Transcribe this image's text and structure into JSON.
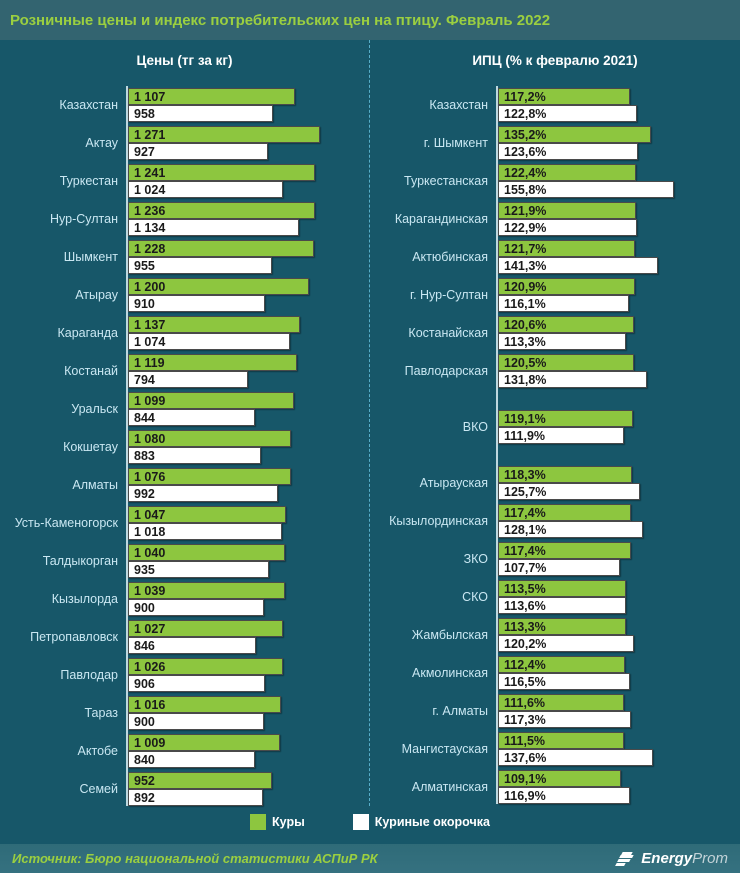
{
  "title": "Розничные цены и индекс потребительских цен на птицу. Февраль 2022",
  "colors": {
    "bg": "#175769",
    "band": "#336470",
    "footer_band": "#357180",
    "accent_green": "#8dc63f",
    "title_green": "#9bcf40",
    "label_blue": "#c9e7f2",
    "divider": "#57aec9",
    "axis": "#dceef5",
    "bar_white": "#ffffff",
    "text_dark": "#1a1a1a"
  },
  "left_panel": {
    "header": "Цены (тг за кг)",
    "rows": [
      {
        "label": "Казахстан",
        "bars": [
          "1 107",
          "958"
        ]
      },
      {
        "label": "Актау",
        "bars": [
          "1 271",
          "927"
        ]
      },
      {
        "label": "Туркестан",
        "bars": [
          "1 241",
          "1 024"
        ]
      },
      {
        "label": "Нур-Султан",
        "bars": [
          "1 236",
          "1 134"
        ]
      },
      {
        "label": "Шымкент",
        "bars": [
          "1 228",
          "955"
        ]
      },
      {
        "label": "Атырау",
        "bars": [
          "1 200",
          "910"
        ]
      },
      {
        "label": "Караганда",
        "bars": [
          "1 137",
          "1 074"
        ]
      },
      {
        "label": "Костанай",
        "bars": [
          "1 119",
          "794"
        ]
      },
      {
        "label": "Уральск",
        "bars": [
          "1 099",
          "844"
        ]
      },
      {
        "label": "Кокшетау",
        "bars": [
          "1 080",
          "883"
        ]
      },
      {
        "label": "Алматы",
        "bars": [
          "1 076",
          "992"
        ]
      },
      {
        "label": "Усть-Каменогорск",
        "bars": [
          "1 047",
          "1 018"
        ]
      },
      {
        "label": "Талдыкорган",
        "bars": [
          "1 040",
          "935"
        ]
      },
      {
        "label": "Кызылорда",
        "bars": [
          "1 039",
          "900"
        ]
      },
      {
        "label": "Петропавловск",
        "bars": [
          "1 027",
          "846"
        ]
      },
      {
        "label": "Павлодар",
        "bars": [
          "1 026",
          "906"
        ]
      },
      {
        "label": "Тараз",
        "bars": [
          "1 016",
          "900"
        ]
      },
      {
        "label": "Актобе",
        "bars": [
          "1 009",
          "840"
        ]
      },
      {
        "label": "Семей",
        "bars": [
          "952",
          "892"
        ]
      }
    ]
  },
  "right_panel": {
    "header": "ИПЦ (% к февралю 2021)",
    "rows": [
      {
        "label": "Казахстан",
        "bars": [
          "117,2%",
          "122,8%"
        ]
      },
      {
        "label": "г. Шымкент",
        "bars": [
          "135,2%",
          "123,6%"
        ]
      },
      {
        "label": "Туркестанская",
        "bars": [
          "122,4%",
          "155,8%"
        ]
      },
      {
        "label": "Карагандинская",
        "bars": [
          "121,9%",
          "122,9%"
        ]
      },
      {
        "label": "Актюбинская",
        "bars": [
          "121,7%",
          "141,3%"
        ]
      },
      {
        "label": "г. Нур-Султан",
        "bars": [
          "120,9%",
          "116,1%"
        ]
      },
      {
        "label": "Костанайская",
        "bars": [
          "120,6%",
          "113,3%"
        ]
      },
      {
        "label": "Павлодарская",
        "bars": [
          "120,5%",
          "131,8%"
        ]
      },
      {
        "label": "ВКО",
        "bars": [
          "119,1%",
          "111,9%"
        ]
      },
      {
        "label": "Атырауская",
        "bars": [
          "118,3%",
          "125,7%"
        ]
      },
      {
        "label": "Кызылординская",
        "bars": [
          "117,4%",
          "128,1%"
        ]
      },
      {
        "label": "ЗКО",
        "bars": [
          "117,4%",
          "107,7%"
        ]
      },
      {
        "label": "СКО",
        "bars": [
          "113,5%",
          "113,6%"
        ]
      },
      {
        "label": "Жамбылская",
        "bars": [
          "113,3%",
          "120,2%"
        ]
      },
      {
        "label": "Акмолинская",
        "bars": [
          "112,4%",
          "116,5%"
        ]
      },
      {
        "label": "г. Алматы",
        "bars": [
          "111,6%",
          "117,3%"
        ]
      },
      {
        "label": "Мангистауская",
        "bars": [
          "111,5%",
          "137,6%"
        ]
      },
      {
        "label": "Алматинская",
        "bars": [
          "109,1%",
          "116,9%"
        ]
      }
    ]
  },
  "legend": {
    "items": [
      {
        "label": "Куры",
        "color": "#8dc63f"
      },
      {
        "label": "Куриные окорочка",
        "color": "#ffffff"
      }
    ]
  },
  "footer": {
    "source": "Источник: Бюро национальной статистики АСПиР РК",
    "logo_bold": "Energy",
    "logo_light": "Prom"
  },
  "chart_data": [
    {
      "type": "bar",
      "orientation": "horizontal",
      "title": "Цены (тг за кг)",
      "xlabel": "тг за кг",
      "xlim": [
        0,
        1271
      ],
      "grid": false,
      "legend_position": "bottom",
      "categories": [
        "Казахстан",
        "Актау",
        "Туркестан",
        "Нур-Султан",
        "Шымкент",
        "Атырау",
        "Караганда",
        "Костанай",
        "Уральск",
        "Кокшетау",
        "Алматы",
        "Усть-Каменогорск",
        "Талдыкорган",
        "Кызылорда",
        "Петропавловск",
        "Павлодар",
        "Тараз",
        "Актобе",
        "Семей"
      ],
      "series": [
        {
          "name": "Куры",
          "values": [
            1107,
            1271,
            1241,
            1236,
            1228,
            1200,
            1137,
            1119,
            1099,
            1080,
            1076,
            1047,
            1040,
            1039,
            1027,
            1026,
            1016,
            1009,
            952
          ]
        },
        {
          "name": "Куриные окорочка",
          "values": [
            958,
            927,
            1024,
            1134,
            955,
            910,
            1074,
            794,
            844,
            883,
            992,
            1018,
            935,
            900,
            846,
            906,
            900,
            840,
            892
          ]
        }
      ]
    },
    {
      "type": "bar",
      "orientation": "horizontal",
      "title": "ИПЦ (% к февралю 2021)",
      "xlabel": "% к февралю 2021",
      "xlim": [
        0,
        155.8
      ],
      "grid": false,
      "legend_position": "bottom",
      "categories": [
        "Казахстан",
        "г. Шымкент",
        "Туркестанская",
        "Карагандинская",
        "Актюбинская",
        "г. Нур-Султан",
        "Костанайская",
        "Павлодарская",
        "ВКО",
        "Атырауская",
        "Кызылординская",
        "ЗКО",
        "СКО",
        "Жамбылская",
        "Акмолинская",
        "г. Алматы",
        "Мангистауская",
        "Алматинская"
      ],
      "series": [
        {
          "name": "Куры",
          "values": [
            117.2,
            135.2,
            122.4,
            121.9,
            121.7,
            120.9,
            120.6,
            120.5,
            119.1,
            118.3,
            117.4,
            117.4,
            113.5,
            113.3,
            112.4,
            111.6,
            111.5,
            109.1
          ]
        },
        {
          "name": "Куриные окорочка",
          "values": [
            122.8,
            123.6,
            155.8,
            122.9,
            141.3,
            116.1,
            113.3,
            131.8,
            111.9,
            125.7,
            128.1,
            107.7,
            113.6,
            120.2,
            116.5,
            117.3,
            137.6,
            116.9
          ]
        }
      ]
    }
  ]
}
